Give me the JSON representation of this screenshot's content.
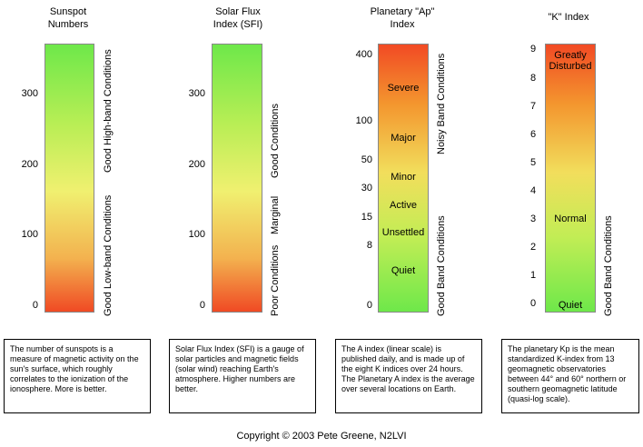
{
  "panels": {
    "sunspot": {
      "title_line1": "Sunspot",
      "title_line2": "Numbers",
      "ticks": [
        "300",
        "200",
        "100",
        "0"
      ],
      "label_high": "Good High-band Conditions",
      "label_low": "Good Low-band Conditions",
      "description": "The number of sunspots is a measure of magnetic activity on the sun's surface, which roughly correlates to the ionization of the ionosphere. More is better."
    },
    "sfi": {
      "title_line1": "Solar Flux",
      "title_line2": "Index (SFI)",
      "ticks": [
        "300",
        "200",
        "100",
        "0"
      ],
      "label_good": "Good Conditions",
      "label_marginal": "Marginal",
      "label_poor": "Poor Conditions",
      "description": "Solar Flux Index (SFI) is a gauge of solar particles and magnetic fields (solar wind) reaching Earth's atmosphere. Higher numbers are better."
    },
    "ap": {
      "title_line1": "Planetary \"Ap\"",
      "title_line2": "Index",
      "ticks": [
        "400",
        "100",
        "50",
        "30",
        "15",
        "8",
        "0"
      ],
      "levels": [
        "Severe",
        "Major",
        "Minor",
        "Active",
        "Unsettled",
        "Quiet"
      ],
      "label_noisy": "Noisy Band Conditions",
      "label_good": "Good Band Conditions",
      "description": "The A index (linear scale) is published daily, and is made up of the eight K indices over 24 hours. The Planetary A index is the average over several locations on Earth."
    },
    "k": {
      "title": "\"K\" Index",
      "ticks": [
        "9",
        "8",
        "7",
        "6",
        "5",
        "4",
        "3",
        "2",
        "1",
        "0"
      ],
      "level_top_line1": "Greatly",
      "level_top_line2": "Disturbed",
      "level_normal": "Normal",
      "level_quiet": "Quiet",
      "label_good": "Good Band Conditions",
      "description": "The planetary Kp is the mean standardized K-index from 13 geomagnetic observatories between 44° and 60° northern or southern geomagnetic latitude (quasi-log scale)."
    }
  },
  "copyright": "Copyright © 2003  Pete Greene, N2LVI"
}
